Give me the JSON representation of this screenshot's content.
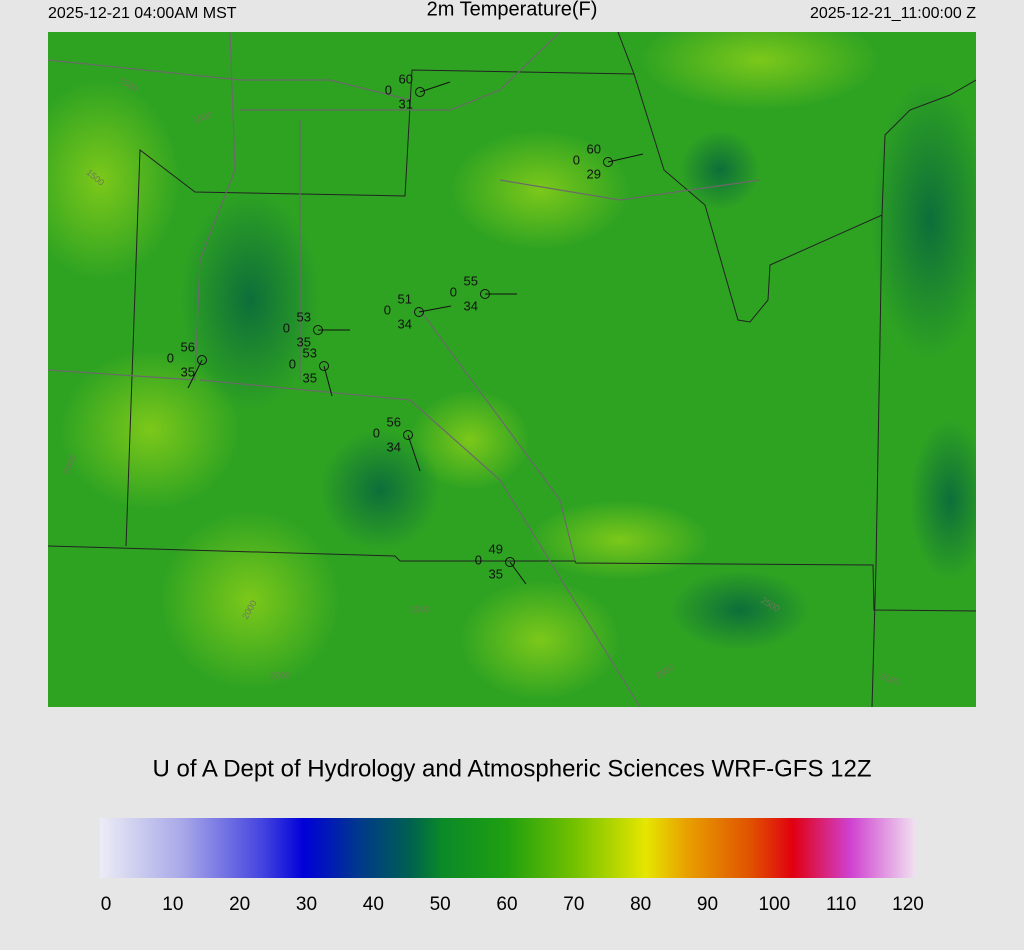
{
  "header": {
    "left": "2025-12-21 04:00AM MST",
    "title": "2m Temperature(F)",
    "right": "2025-12-21_11:00:00 Z"
  },
  "stations": [
    {
      "temperature": 60,
      "visibility": 0,
      "dewpoint": 31
    },
    {
      "temperature": 60,
      "visibility": 0,
      "dewpoint": 29
    },
    {
      "temperature": 55,
      "visibility": 0,
      "dewpoint": 34
    },
    {
      "temperature": 51,
      "visibility": 0,
      "dewpoint": 34
    },
    {
      "temperature": 53,
      "visibility": 0,
      "dewpoint": 35
    },
    {
      "temperature": 53,
      "visibility": 0,
      "dewpoint": 35
    },
    {
      "temperature": 56,
      "visibility": 0,
      "dewpoint": 35
    },
    {
      "temperature": 56,
      "visibility": 0,
      "dewpoint": 34
    },
    {
      "temperature": 49,
      "visibility": 0,
      "dewpoint": 35
    }
  ],
  "contour_labels": [
    "1500",
    "1500",
    "1500",
    "2000",
    "2000",
    "2000",
    "2000",
    "2500",
    "2500",
    "2000"
  ],
  "credit": "U of A Dept of Hydrology and Atmospheric Sciences WRF-GFS 12Z",
  "colorbar": {
    "ticks": [
      0,
      10,
      20,
      30,
      40,
      50,
      60,
      70,
      80,
      90,
      100,
      110,
      120
    ]
  }
}
